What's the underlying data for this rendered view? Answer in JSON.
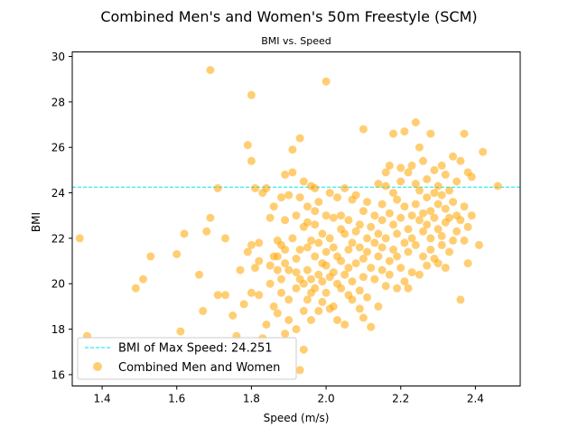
{
  "chart_data": {
    "type": "scatter",
    "suptitle": "Combined Men's and Women's 50m Freestyle (SCM)",
    "title": "BMI vs. Speed",
    "xlabel": "Speed (m/s)",
    "ylabel": "BMI",
    "xlim": [
      1.32,
      2.52
    ],
    "ylim": [
      15.5,
      30.2
    ],
    "xticks": [
      "1.4",
      "1.6",
      "1.8",
      "2.0",
      "2.2",
      "2.4"
    ],
    "yticks": [
      "16",
      "18",
      "20",
      "22",
      "24",
      "26",
      "28",
      "30"
    ],
    "grid": false,
    "legend_position": "lower-left",
    "hline": {
      "label": "BMI of Max Speed: 24.251",
      "y": 24.251,
      "color": "#00e5ee",
      "style": "dashed"
    },
    "series": [
      {
        "name": "Combined Men and Women",
        "color": "#ffa500",
        "alpha": 0.55,
        "points": [
          [
            1.34,
            22.0
          ],
          [
            1.36,
            17.7
          ],
          [
            1.49,
            19.8
          ],
          [
            1.51,
            20.2
          ],
          [
            1.53,
            21.2
          ],
          [
            1.6,
            21.3
          ],
          [
            1.61,
            17.9
          ],
          [
            1.62,
            22.2
          ],
          [
            1.66,
            20.4
          ],
          [
            1.67,
            18.8
          ],
          [
            1.68,
            22.3
          ],
          [
            1.69,
            22.9
          ],
          [
            1.69,
            29.4
          ],
          [
            1.71,
            19.5
          ],
          [
            1.71,
            24.2
          ],
          [
            1.73,
            19.5
          ],
          [
            1.73,
            22.0
          ],
          [
            1.75,
            18.6
          ],
          [
            1.76,
            17.7
          ],
          [
            1.77,
            20.6
          ],
          [
            1.78,
            19.1
          ],
          [
            1.79,
            21.4
          ],
          [
            1.79,
            26.1
          ],
          [
            1.8,
            25.4
          ],
          [
            1.8,
            28.3
          ],
          [
            1.8,
            19.6
          ],
          [
            1.8,
            21.7
          ],
          [
            1.81,
            20.7
          ],
          [
            1.81,
            24.2
          ],
          [
            1.82,
            21.0
          ],
          [
            1.82,
            21.8
          ],
          [
            1.82,
            19.5
          ],
          [
            1.83,
            24.0
          ],
          [
            1.83,
            17.6
          ],
          [
            1.84,
            18.2
          ],
          [
            1.84,
            24.2
          ],
          [
            1.85,
            20.8
          ],
          [
            1.85,
            22.9
          ],
          [
            1.85,
            20.0
          ],
          [
            1.86,
            21.2
          ],
          [
            1.86,
            19.0
          ],
          [
            1.86,
            23.4
          ],
          [
            1.87,
            21.2
          ],
          [
            1.87,
            18.7
          ],
          [
            1.87,
            20.6
          ],
          [
            1.87,
            21.9
          ],
          [
            1.88,
            23.8
          ],
          [
            1.88,
            19.6
          ],
          [
            1.88,
            20.2
          ],
          [
            1.88,
            21.7
          ],
          [
            1.89,
            17.8
          ],
          [
            1.89,
            21.5
          ],
          [
            1.89,
            22.8
          ],
          [
            1.89,
            24.8
          ],
          [
            1.89,
            20.9
          ],
          [
            1.9,
            19.3
          ],
          [
            1.9,
            23.9
          ],
          [
            1.9,
            18.4
          ],
          [
            1.9,
            20.6
          ],
          [
            1.91,
            22.0
          ],
          [
            1.91,
            24.9
          ],
          [
            1.91,
            25.9
          ],
          [
            1.92,
            19.8
          ],
          [
            1.92,
            18.0
          ],
          [
            1.92,
            20.5
          ],
          [
            1.92,
            23.0
          ],
          [
            1.92,
            21.1
          ],
          [
            1.93,
            26.4
          ],
          [
            1.93,
            21.5
          ],
          [
            1.93,
            23.8
          ],
          [
            1.93,
            16.2
          ],
          [
            1.93,
            20.2
          ],
          [
            1.94,
            18.8
          ],
          [
            1.94,
            22.5
          ],
          [
            1.94,
            20.0
          ],
          [
            1.94,
            24.5
          ],
          [
            1.94,
            17.1
          ],
          [
            1.95,
            21.6
          ],
          [
            1.95,
            19.3
          ],
          [
            1.95,
            23.4
          ],
          [
            1.95,
            20.6
          ],
          [
            1.95,
            22.7
          ],
          [
            1.96,
            18.4
          ],
          [
            1.96,
            24.3
          ],
          [
            1.96,
            21.9
          ],
          [
            1.96,
            20.2
          ],
          [
            1.96,
            19.6
          ],
          [
            1.97,
            23.2
          ],
          [
            1.97,
            21.2
          ],
          [
            1.97,
            24.2
          ],
          [
            1.97,
            19.8
          ],
          [
            1.97,
            22.6
          ],
          [
            1.98,
            20.4
          ],
          [
            1.98,
            18.8
          ],
          [
            1.98,
            21.8
          ],
          [
            1.98,
            23.6
          ],
          [
            1.99,
            20.9
          ],
          [
            1.99,
            19.2
          ],
          [
            1.99,
            22.2
          ],
          [
            1.99,
            20.1
          ],
          [
            2.0,
            28.9
          ],
          [
            2.0,
            21.4
          ],
          [
            2.0,
            23.0
          ],
          [
            2.0,
            19.6
          ],
          [
            2.0,
            20.8
          ],
          [
            2.01,
            22.0
          ],
          [
            2.01,
            18.9
          ],
          [
            2.01,
            24.0
          ],
          [
            2.01,
            20.3
          ],
          [
            2.02,
            21.6
          ],
          [
            2.02,
            19.0
          ],
          [
            2.02,
            22.9
          ],
          [
            2.02,
            20.5
          ],
          [
            2.03,
            23.8
          ],
          [
            2.03,
            18.4
          ],
          [
            2.03,
            21.2
          ],
          [
            2.03,
            20.0
          ],
          [
            2.04,
            22.4
          ],
          [
            2.04,
            19.8
          ],
          [
            2.04,
            23.0
          ],
          [
            2.04,
            21.0
          ],
          [
            2.05,
            18.2
          ],
          [
            2.05,
            22.2
          ],
          [
            2.05,
            24.2
          ],
          [
            2.05,
            20.4
          ],
          [
            2.06,
            21.5
          ],
          [
            2.06,
            19.5
          ],
          [
            2.06,
            22.8
          ],
          [
            2.06,
            20.7
          ],
          [
            2.07,
            23.7
          ],
          [
            2.07,
            21.8
          ],
          [
            2.07,
            19.3
          ],
          [
            2.07,
            20.1
          ],
          [
            2.08,
            22.3
          ],
          [
            2.08,
            23.9
          ],
          [
            2.08,
            20.9
          ],
          [
            2.09,
            21.6
          ],
          [
            2.09,
            19.7
          ],
          [
            2.09,
            22.6
          ],
          [
            2.09,
            18.9
          ],
          [
            2.1,
            26.8
          ],
          [
            2.1,
            21.1
          ],
          [
            2.1,
            23.2
          ],
          [
            2.1,
            20.3
          ],
          [
            2.1,
            18.5
          ],
          [
            2.11,
            22.0
          ],
          [
            2.11,
            21.4
          ],
          [
            2.11,
            19.4
          ],
          [
            2.11,
            23.6
          ],
          [
            2.12,
            20.7
          ],
          [
            2.12,
            22.5
          ],
          [
            2.12,
            18.1
          ],
          [
            2.13,
            21.8
          ],
          [
            2.13,
            23.0
          ],
          [
            2.13,
            20.2
          ],
          [
            2.14,
            22.2
          ],
          [
            2.14,
            24.4
          ],
          [
            2.14,
            21.2
          ],
          [
            2.14,
            19.0
          ],
          [
            2.15,
            22.8
          ],
          [
            2.15,
            20.6
          ],
          [
            2.15,
            23.5
          ],
          [
            2.15,
            21.6
          ],
          [
            2.16,
            24.9
          ],
          [
            2.16,
            22.0
          ],
          [
            2.16,
            19.9
          ],
          [
            2.16,
            24.3
          ],
          [
            2.17,
            25.2
          ],
          [
            2.17,
            21.0
          ],
          [
            2.17,
            23.1
          ],
          [
            2.17,
            20.4
          ],
          [
            2.18,
            22.6
          ],
          [
            2.18,
            26.6
          ],
          [
            2.18,
            21.5
          ],
          [
            2.18,
            24.0
          ],
          [
            2.19,
            19.8
          ],
          [
            2.19,
            22.2
          ],
          [
            2.19,
            23.7
          ],
          [
            2.19,
            21.2
          ],
          [
            2.2,
            25.1
          ],
          [
            2.2,
            20.7
          ],
          [
            2.2,
            22.9
          ],
          [
            2.2,
            24.5
          ],
          [
            2.21,
            26.7
          ],
          [
            2.21,
            21.8
          ],
          [
            2.21,
            23.4
          ],
          [
            2.21,
            20.1
          ],
          [
            2.22,
            22.4
          ],
          [
            2.22,
            24.9
          ],
          [
            2.22,
            21.4
          ],
          [
            2.22,
            19.8
          ],
          [
            2.23,
            23.0
          ],
          [
            2.23,
            25.2
          ],
          [
            2.23,
            22.0
          ],
          [
            2.23,
            20.5
          ],
          [
            2.24,
            24.4
          ],
          [
            2.24,
            27.1
          ],
          [
            2.24,
            21.7
          ],
          [
            2.24,
            23.5
          ],
          [
            2.25,
            22.8
          ],
          [
            2.25,
            26.0
          ],
          [
            2.25,
            20.4
          ],
          [
            2.25,
            24.1
          ],
          [
            2.26,
            21.2
          ],
          [
            2.26,
            23.1
          ],
          [
            2.26,
            22.3
          ],
          [
            2.26,
            25.4
          ],
          [
            2.27,
            20.8
          ],
          [
            2.27,
            22.6
          ],
          [
            2.27,
            24.6
          ],
          [
            2.27,
            23.8
          ],
          [
            2.28,
            26.6
          ],
          [
            2.28,
            21.5
          ],
          [
            2.28,
            23.2
          ],
          [
            2.28,
            22.0
          ],
          [
            2.29,
            24.0
          ],
          [
            2.29,
            21.1
          ],
          [
            2.29,
            22.9
          ],
          [
            2.29,
            25.0
          ],
          [
            2.3,
            23.5
          ],
          [
            2.3,
            20.9
          ],
          [
            2.3,
            24.3
          ],
          [
            2.3,
            22.4
          ],
          [
            2.31,
            21.7
          ],
          [
            2.31,
            23.9
          ],
          [
            2.31,
            25.2
          ],
          [
            2.31,
            22.1
          ],
          [
            2.32,
            24.8
          ],
          [
            2.32,
            20.7
          ],
          [
            2.32,
            23.3
          ],
          [
            2.32,
            22.7
          ],
          [
            2.33,
            21.4
          ],
          [
            2.33,
            24.1
          ],
          [
            2.33,
            22.9
          ],
          [
            2.34,
            25.6
          ],
          [
            2.34,
            23.6
          ],
          [
            2.34,
            21.9
          ],
          [
            2.35,
            24.5
          ],
          [
            2.35,
            22.3
          ],
          [
            2.35,
            23.0
          ],
          [
            2.36,
            25.4
          ],
          [
            2.36,
            19.3
          ],
          [
            2.36,
            22.8
          ],
          [
            2.37,
            26.6
          ],
          [
            2.37,
            21.9
          ],
          [
            2.37,
            23.4
          ],
          [
            2.38,
            24.9
          ],
          [
            2.38,
            20.9
          ],
          [
            2.38,
            22.5
          ],
          [
            2.39,
            24.7
          ],
          [
            2.39,
            23.0
          ],
          [
            2.41,
            21.7
          ],
          [
            2.42,
            25.8
          ],
          [
            2.46,
            24.3
          ]
        ]
      }
    ]
  }
}
